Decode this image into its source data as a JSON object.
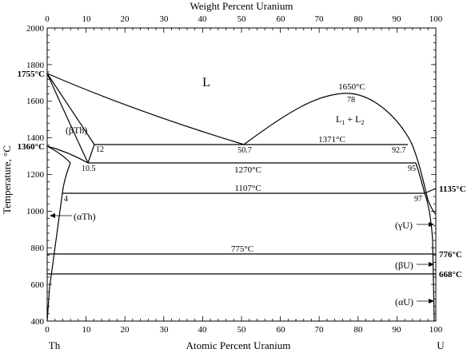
{
  "axes": {
    "top_title": "Weight Percent Uranium",
    "bottom_title": "Atomic Percent Uranium",
    "left_title": "Temperature, °C",
    "x_ticks": [
      "0",
      "10",
      "20",
      "30",
      "40",
      "50",
      "60",
      "70",
      "80",
      "90",
      "100"
    ],
    "y_ticks": [
      "400",
      "600",
      "800",
      "1000",
      "1200",
      "1400",
      "1600",
      "1800",
      "2000"
    ],
    "y_range": [
      400,
      2000
    ],
    "x_range": [
      0,
      100
    ],
    "left_element": "Th",
    "right_element": "U"
  },
  "regions": {
    "liquid": "L",
    "l1": "L",
    "sub1": "1",
    "plus": " + L",
    "sub2": "2",
    "beta_th": "(βTh)",
    "alpha_th": "(αTh)",
    "gamma_u": "(γU)",
    "beta_u": "(βU)",
    "alpha_u": "(αU)"
  },
  "temperatures": {
    "th_melt": "1755°C",
    "th_trans": "1360°C",
    "u_gamma_beta_right": "1135°C",
    "u_776": "776°C",
    "u_668": "668°C",
    "monotectic_top": "1650°C",
    "iso_1371": "1371°C",
    "iso_1270": "1270°C",
    "iso_1107": "1107°C",
    "iso_775": "775°C"
  },
  "compositions": {
    "c78": "78",
    "c12": "12",
    "c50_7": "50.7",
    "c92_7": "92.7",
    "c10_5": "10.5",
    "c95": "95",
    "c4": "4",
    "c97": "97"
  },
  "chart_data": {
    "type": "phase-diagram",
    "x_axis": "Atomic Percent Uranium",
    "secondary_x_axis": "Weight Percent Uranium",
    "y_axis": "Temperature, °C",
    "xlim": [
      0,
      100
    ],
    "ylim": [
      400,
      2000
    ],
    "isotherms": [
      {
        "T": 1371,
        "from_x": 12,
        "to_x": 92.7
      },
      {
        "T": 1270,
        "from_x": 10.5,
        "to_x": 95
      },
      {
        "T": 1107,
        "from_x": 4,
        "to_x": 97
      },
      {
        "T": 775,
        "from_x": 0,
        "to_x": 100
      },
      {
        "T": 668,
        "from_x": 0,
        "to_x": 100
      }
    ],
    "special_points": [
      {
        "x": 0,
        "T": 1755
      },
      {
        "x": 0,
        "T": 1360
      },
      {
        "x": 78,
        "T": 1650
      },
      {
        "x": 50.7,
        "T": 1371
      },
      {
        "x": 100,
        "T": 1135
      },
      {
        "x": 100,
        "T": 776
      },
      {
        "x": 100,
        "T": 668
      }
    ],
    "curves": [
      {
        "name": "liquidus-left",
        "points": [
          [
            0,
            1755
          ],
          [
            12,
            1371
          ]
        ]
      },
      {
        "name": "liquidus-mid",
        "points": [
          [
            0,
            1755
          ],
          [
            10,
            1610
          ],
          [
            20,
            1535
          ],
          [
            30,
            1480
          ],
          [
            40,
            1420
          ],
          [
            50.7,
            1371
          ]
        ]
      },
      {
        "name": "miscibility-gap",
        "points": [
          [
            50.7,
            1371
          ],
          [
            60,
            1470
          ],
          [
            70,
            1590
          ],
          [
            78,
            1650
          ],
          [
            85,
            1615
          ],
          [
            90,
            1520
          ],
          [
            95,
            1330
          ],
          [
            98,
            1180
          ],
          [
            100,
            1135
          ]
        ]
      },
      {
        "name": "bTh-solvus",
        "points": [
          [
            0,
            1360
          ],
          [
            5,
            1330
          ],
          [
            10.5,
            1270
          ]
        ]
      },
      {
        "name": "bTh-lower",
        "points": [
          [
            0,
            1360
          ],
          [
            3.5,
            1310
          ],
          [
            5,
            1270
          ]
        ]
      },
      {
        "name": "aTh-solvus",
        "points": [
          [
            5,
            1270
          ],
          [
            4,
            1107
          ],
          [
            2,
            900
          ],
          [
            0.5,
            600
          ],
          [
            0,
            400
          ]
        ]
      }
    ]
  }
}
